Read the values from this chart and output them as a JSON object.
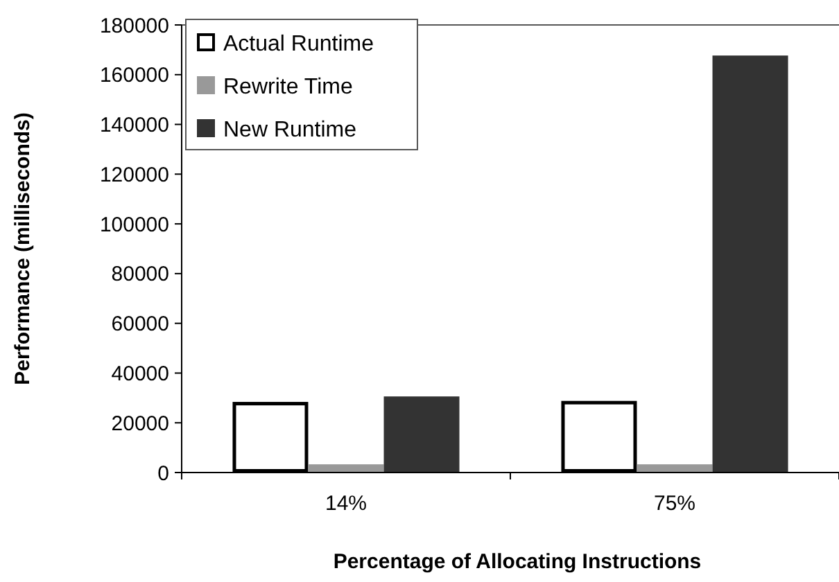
{
  "chart_data": {
    "type": "bar",
    "xlabel": "Percentage of Allocating Instructions",
    "ylabel": "Performance (milliseconds)",
    "categories": [
      "14%",
      "75%"
    ],
    "series": [
      {
        "name": "Actual Runtime",
        "color": "#ffffff",
        "values": [
          28400,
          28800
        ]
      },
      {
        "name": "Rewrite Time",
        "color": "#999999",
        "values": [
          3300,
          3300
        ]
      },
      {
        "name": "New Runtime",
        "color": "#333333",
        "values": [
          30600,
          167700
        ]
      }
    ],
    "ylim": [
      0,
      180000
    ],
    "yticks": [
      0,
      20000,
      40000,
      60000,
      80000,
      100000,
      120000,
      140000,
      160000,
      180000
    ],
    "grid": false,
    "legend": "top left"
  }
}
